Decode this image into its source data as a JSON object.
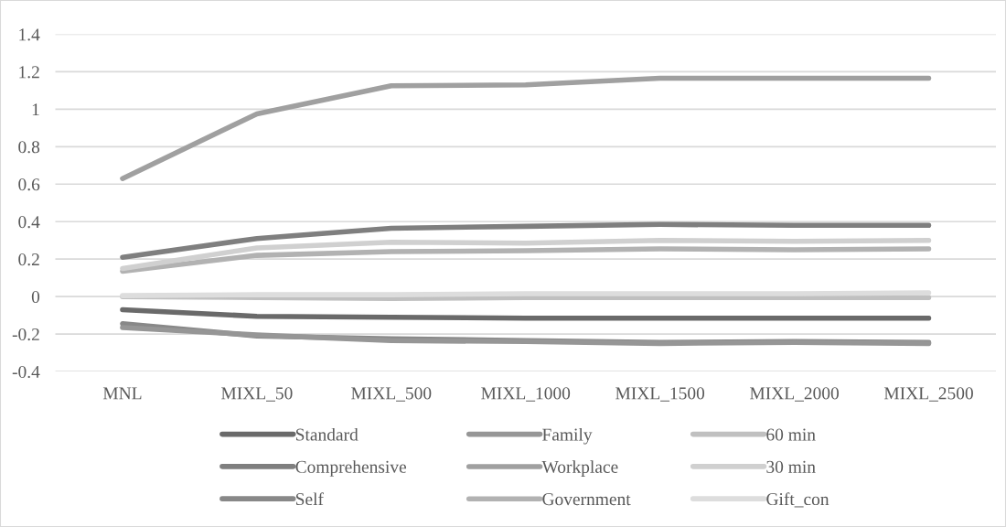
{
  "chart_data": {
    "type": "line",
    "categories": [
      "MNL",
      "MIXL_50",
      "MIXL_500",
      "MIXL_1000",
      "MIXL_1500",
      "MIXL_2000",
      "MIXL_2500"
    ],
    "series": [
      {
        "name": "Standard",
        "color": "#6a6a6a",
        "values": [
          -0.07,
          -0.105,
          -0.11,
          -0.115,
          -0.115,
          -0.115,
          -0.115
        ]
      },
      {
        "name": "Comprehensive",
        "color": "#7f7f7f",
        "values": [
          0.21,
          0.31,
          0.365,
          0.375,
          0.385,
          0.38,
          0.38
        ]
      },
      {
        "name": "Self",
        "color": "#888888",
        "values": [
          -0.145,
          -0.21,
          -0.225,
          -0.235,
          -0.245,
          -0.24,
          -0.245
        ]
      },
      {
        "name": "Family",
        "color": "#969696",
        "values": [
          -0.165,
          -0.205,
          -0.235,
          -0.24,
          -0.25,
          -0.245,
          -0.25
        ]
      },
      {
        "name": "Workplace",
        "color": "#a0a0a0",
        "values": [
          0.63,
          0.975,
          1.125,
          1.13,
          1.165,
          1.165,
          1.165
        ]
      },
      {
        "name": "Government",
        "color": "#b2b2b2",
        "values": [
          0.135,
          0.22,
          0.24,
          0.245,
          0.255,
          0.25,
          0.255
        ]
      },
      {
        "name": "60 min",
        "color": "#c0c0c0",
        "values": [
          0.0,
          -0.005,
          -0.01,
          -0.005,
          -0.005,
          -0.005,
          -0.005
        ]
      },
      {
        "name": "30 min",
        "color": "#d0d0d0",
        "values": [
          0.15,
          0.26,
          0.29,
          0.285,
          0.3,
          0.295,
          0.3
        ]
      },
      {
        "name": "Gift_con",
        "color": "#dddddd",
        "values": [
          0.005,
          0.01,
          0.01,
          0.015,
          0.015,
          0.015,
          0.02
        ]
      }
    ],
    "ylim": [
      -0.4,
      1.4
    ],
    "yticks": [
      -0.4,
      -0.2,
      0,
      0.2,
      0.4,
      0.6,
      0.8,
      1,
      1.2,
      1.4
    ],
    "grid": "y",
    "legend": "bottom",
    "marker": "none",
    "line_style": "solid"
  }
}
